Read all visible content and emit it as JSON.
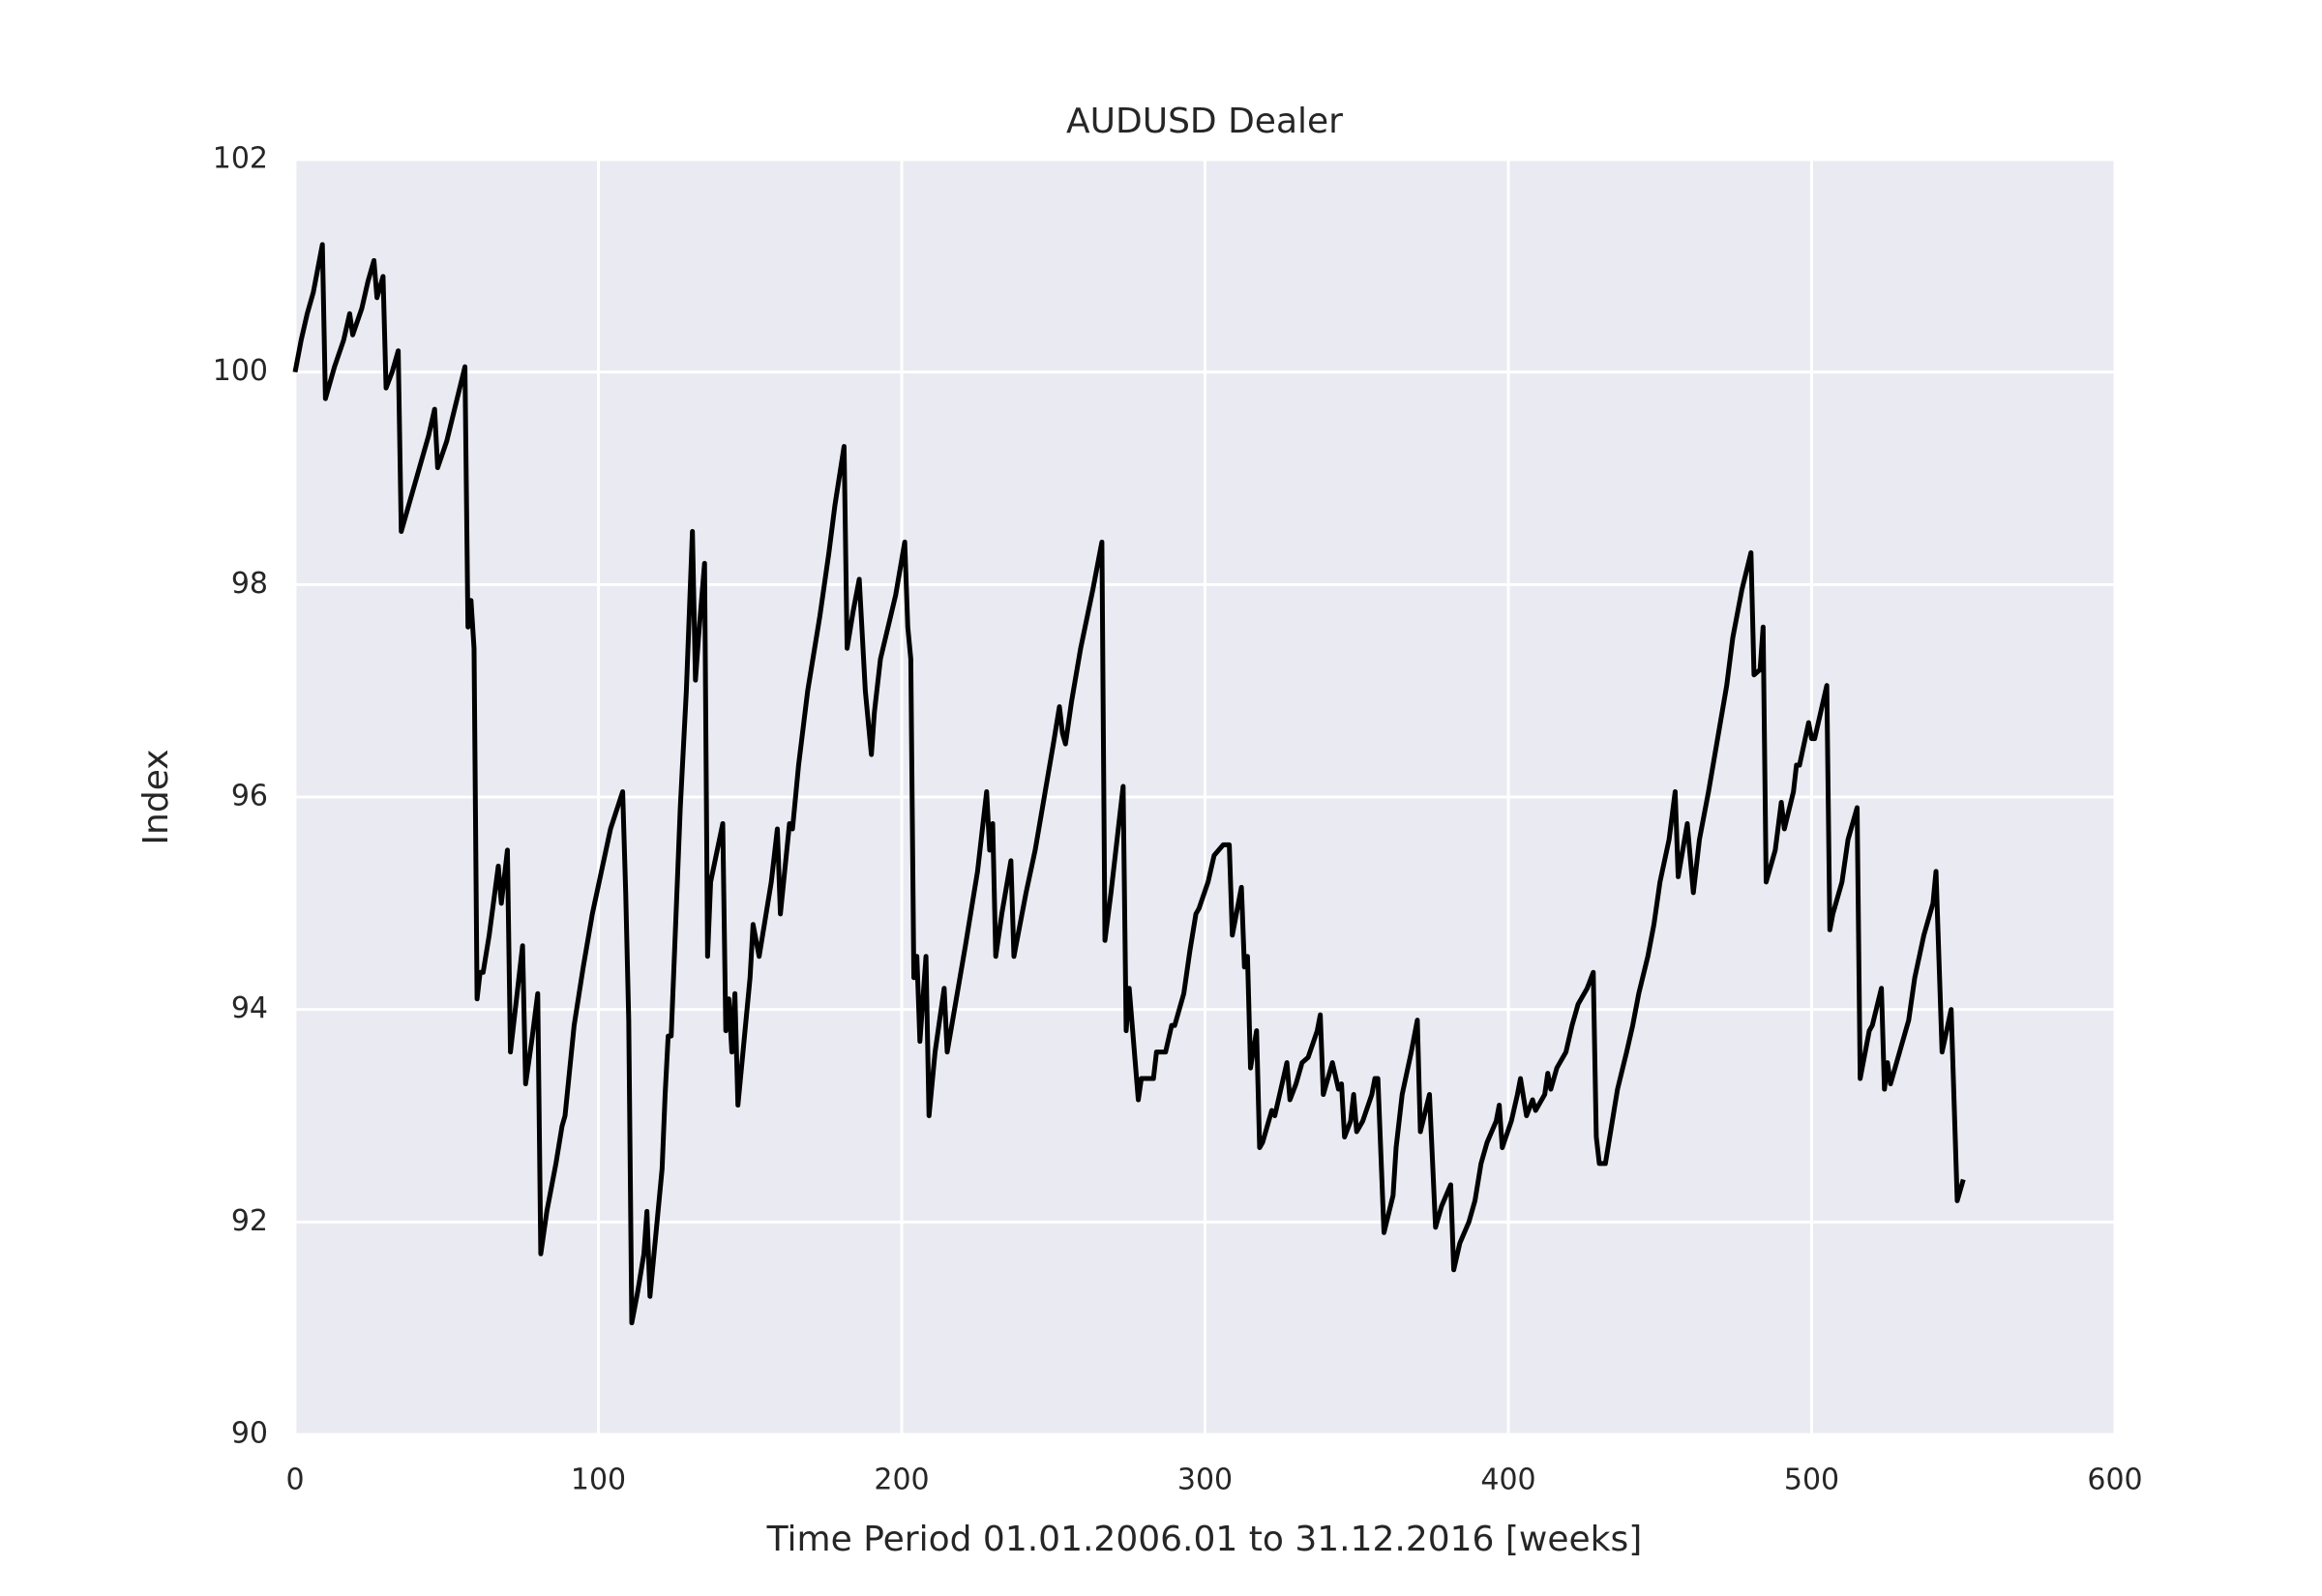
{
  "chart_data": {
    "type": "line",
    "title": "AUDUSD Dealer",
    "xlabel": "Time Period 01.01.2006.01 to 31.12.2016 [weeks]",
    "ylabel": "Index",
    "color": "#000000",
    "background": "#eaeaf2",
    "grid": true,
    "xlim": [
      0,
      600
    ],
    "xticks": [
      0,
      100,
      200,
      300,
      400,
      500,
      600
    ],
    "ylim": [
      90,
      102
    ],
    "yticks": [
      90,
      92,
      94,
      96,
      98,
      100,
      102
    ],
    "x": [
      0,
      2,
      4,
      6,
      9,
      10,
      13,
      16,
      18,
      19,
      22,
      24,
      26,
      27,
      29,
      30,
      32,
      34,
      35,
      38,
      41,
      44,
      46,
      47,
      50,
      53,
      56,
      57,
      58,
      59,
      60,
      61,
      62,
      64,
      67,
      68,
      70,
      71,
      73,
      75,
      76,
      78,
      80,
      81,
      83,
      86,
      88,
      89,
      92,
      95,
      98,
      101,
      104,
      108,
      109,
      110,
      111,
      113,
      115,
      116,
      117,
      119,
      121,
      122,
      123,
      124,
      127,
      129,
      131,
      132,
      133,
      135,
      136,
      137,
      141,
      142,
      143,
      144,
      145,
      146,
      148,
      150,
      151,
      153,
      157,
      159,
      160,
      163,
      164,
      166,
      169,
      173,
      176,
      178,
      181,
      182,
      184,
      186,
      188,
      190,
      191,
      193,
      198,
      201,
      202,
      203,
      204,
      205,
      206,
      208,
      209,
      211,
      214,
      215,
      218,
      221,
      225,
      227,
      228,
      229,
      230,
      231,
      233,
      236,
      237,
      239,
      241,
      244,
      247,
      250,
      252,
      253,
      254,
      256,
      259,
      263,
      266,
      267,
      269,
      271,
      273,
      274,
      275,
      278,
      279,
      281,
      283,
      284,
      287,
      289,
      290,
      293,
      295,
      297,
      298,
      301,
      303,
      306,
      308,
      309,
      312,
      313,
      314,
      315,
      317,
      318,
      319,
      322,
      323,
      325,
      327,
      328,
      330,
      332,
      334,
      337,
      338,
      339,
      340,
      342,
      344,
      345,
      346,
      348,
      349,
      350,
      352,
      355,
      356,
      357,
      359,
      362,
      363,
      365,
      368,
      370,
      371,
      374,
      376,
      378,
      381,
      382,
      384,
      387,
      389,
      391,
      393,
      396,
      397,
      398,
      401,
      403,
      404,
      406,
      408,
      409,
      412,
      413,
      414,
      416,
      419,
      421,
      423,
      426,
      428,
      429,
      430,
      432,
      434,
      436,
      439,
      441,
      443,
      446,
      448,
      450,
      453,
      455,
      456,
      459,
      461,
      463,
      466,
      469,
      472,
      474,
      477,
      480,
      481,
      483,
      484,
      485,
      488,
      490,
      491,
      494,
      495,
      496,
      499,
      500,
      501,
      505,
      506,
      507,
      510,
      512,
      515,
      516,
      519,
      520,
      523,
      524,
      525,
      526,
      529,
      532,
      534,
      537,
      540,
      541,
      543,
      546,
      548,
      550
    ],
    "values": [
      100.0,
      100.3,
      100.55,
      100.75,
      101.2,
      99.75,
      100.05,
      100.3,
      100.55,
      100.35,
      100.6,
      100.85,
      101.05,
      100.7,
      100.9,
      99.85,
      100.0,
      100.2,
      98.5,
      98.8,
      99.1,
      99.4,
      99.65,
      99.1,
      99.35,
      99.7,
      100.05,
      97.6,
      97.85,
      97.4,
      94.1,
      94.35,
      94.35,
      94.7,
      95.35,
      95.0,
      95.5,
      93.6,
      94.1,
      94.6,
      93.3,
      93.7,
      94.15,
      91.7,
      92.1,
      92.55,
      92.9,
      93.0,
      93.85,
      94.4,
      94.9,
      95.3,
      95.7,
      96.05,
      95.1,
      93.9,
      91.05,
      91.35,
      91.7,
      92.1,
      91.3,
      91.9,
      92.5,
      93.2,
      93.75,
      93.75,
      95.9,
      97.0,
      98.5,
      97.1,
      97.5,
      98.2,
      94.5,
      95.2,
      95.75,
      93.8,
      94.1,
      93.6,
      94.15,
      93.1,
      93.7,
      94.3,
      94.8,
      94.5,
      95.2,
      95.7,
      94.9,
      95.75,
      95.7,
      96.3,
      97.0,
      97.7,
      98.3,
      98.75,
      99.3,
      97.4,
      97.75,
      98.05,
      97.0,
      96.4,
      96.8,
      97.3,
      97.9,
      98.4,
      97.6,
      97.3,
      94.3,
      94.5,
      93.7,
      94.5,
      93.0,
      93.6,
      94.2,
      93.6,
      94.1,
      94.6,
      95.3,
      95.8,
      96.05,
      95.5,
      95.75,
      94.5,
      94.9,
      95.4,
      94.5,
      94.8,
      95.1,
      95.5,
      96.0,
      96.5,
      96.85,
      96.6,
      96.5,
      96.9,
      97.4,
      97.95,
      98.4,
      94.65,
      95.1,
      95.6,
      96.1,
      93.8,
      94.2,
      93.15,
      93.35,
      93.35,
      93.35,
      93.6,
      93.6,
      93.85,
      93.85,
      94.15,
      94.55,
      94.9,
      94.95,
      95.2,
      95.45,
      95.55,
      95.55,
      94.7,
      95.15,
      94.4,
      94.5,
      93.45,
      93.8,
      92.7,
      92.75,
      93.05,
      93.0,
      93.25,
      93.5,
      93.15,
      93.3,
      93.5,
      93.55,
      93.8,
      93.95,
      93.2,
      93.3,
      93.5,
      93.25,
      93.3,
      92.8,
      92.95,
      93.2,
      92.85,
      92.95,
      93.2,
      93.35,
      93.35,
      91.9,
      92.25,
      92.7,
      93.2,
      93.6,
      93.9,
      92.85,
      93.2,
      91.95,
      92.15,
      92.35,
      91.55,
      91.8,
      92.0,
      92.2,
      92.55,
      92.75,
      92.95,
      93.1,
      92.7,
      92.95,
      93.2,
      93.35,
      93.0,
      93.15,
      93.05,
      93.2,
      93.4,
      93.25,
      93.45,
      93.6,
      93.85,
      94.05,
      94.2,
      94.35,
      92.8,
      92.55,
      92.55,
      92.9,
      93.25,
      93.6,
      93.85,
      94.15,
      94.5,
      94.8,
      95.2,
      95.6,
      96.05,
      95.25,
      95.75,
      95.1,
      95.6,
      96.05,
      96.55,
      97.05,
      97.5,
      97.95,
      98.3,
      97.15,
      97.2,
      97.6,
      95.2,
      95.5,
      95.95,
      95.7,
      96.05,
      96.3,
      96.3,
      96.7,
      96.55,
      96.55,
      97.05,
      94.75,
      94.9,
      95.2,
      95.6,
      95.9,
      93.35,
      93.8,
      93.85,
      94.2,
      93.25,
      93.5,
      93.3,
      93.6,
      93.9,
      94.3,
      94.7,
      95.0,
      95.3,
      93.6,
      94.0,
      92.2,
      92.4
    ]
  }
}
